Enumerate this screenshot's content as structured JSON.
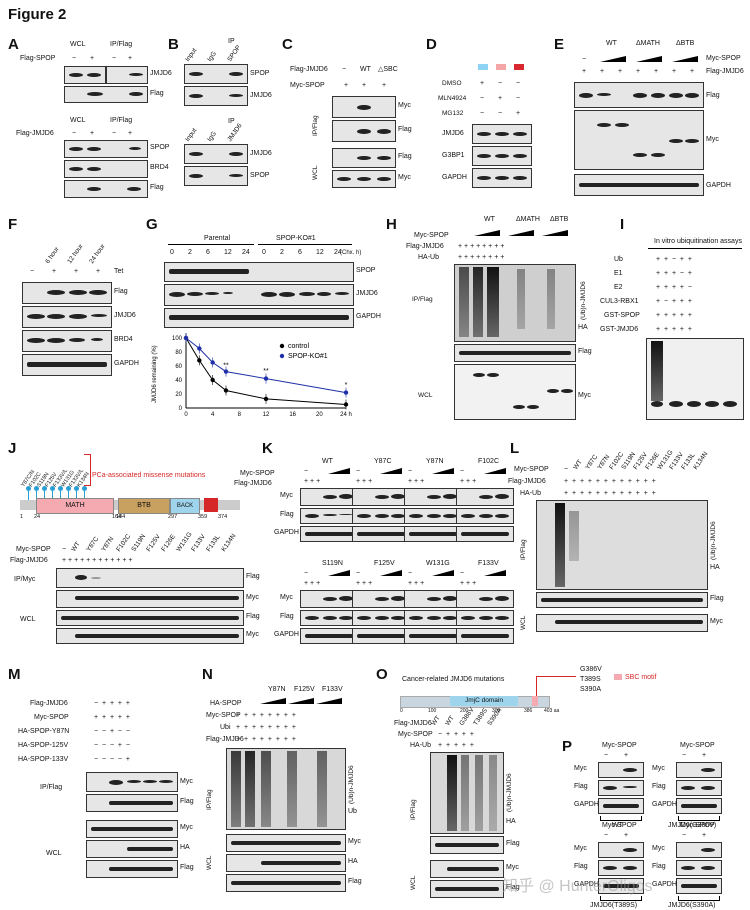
{
  "figure_title": "Figure 2",
  "panels": {
    "A": {
      "letter": "A",
      "col_wcl": "WCL",
      "col_ip": "IP/Flag",
      "row1": "Flag-SPOP",
      "labels1": [
        "JMJD6",
        "Flag"
      ],
      "row2": "Flag-JMJD6",
      "labels2": [
        "SPOP",
        "BRD4",
        "Flag"
      ],
      "minus": "−",
      "plus": "+"
    },
    "B": {
      "letter": "B",
      "ip": "IP",
      "cols1": [
        "Input",
        "IgG",
        "SPOP"
      ],
      "labels1": [
        "SPOP",
        "JMJD6"
      ],
      "cols2": [
        "Input",
        "IgG",
        "JMJD6"
      ],
      "labels2": [
        "JMJD6",
        "SPOP"
      ]
    },
    "C": {
      "letter": "C",
      "row1": "Flag-JMJD6",
      "row2": "Myc-SPOP",
      "cols": [
        "−",
        "WT",
        "△SBC"
      ],
      "group1": "IP/Flag",
      "group2": "WCL",
      "labels": [
        "Myc",
        "Flag",
        "Flag",
        "Myc"
      ]
    },
    "D": {
      "letter": "D",
      "rows": [
        "DMSO",
        "MLN4924",
        "MG132"
      ],
      "labels": [
        "JMJD6",
        "G3BP1",
        "GAPDH"
      ],
      "colors": [
        "#8fd3f4",
        "#f4a6a6",
        "#d9272e"
      ]
    },
    "E": {
      "letter": "E",
      "cols": [
        "WT",
        "ΔMATH",
        "ΔBTB"
      ],
      "row1": "Myc-SPOP",
      "row2": "Flag-JMJD6",
      "labels": [
        "Flag",
        "Myc",
        "GAPDH"
      ]
    },
    "F": {
      "letter": "F",
      "cols": [
        "6 hour",
        "12 hour",
        "24 hour"
      ],
      "row": "Tet",
      "labels": [
        "Flag",
        "JMJD6",
        "BRD4",
        "GAPDH"
      ]
    },
    "G": {
      "letter": "G",
      "groups": [
        "Parental",
        "SPOP-KO#1"
      ],
      "times": [
        "0",
        "2",
        "6",
        "12",
        "24"
      ],
      "unit": "(Chx. h)",
      "labels": [
        "SPOP",
        "JMJD6",
        "GAPDH"
      ]
    },
    "H": {
      "letter": "H",
      "cols": [
        "WT",
        "ΔMATH",
        "ΔBTB"
      ],
      "rows": [
        "Myc-SPOP",
        "Flag-JMJD6",
        "HA-Ub"
      ],
      "group1": "IP/Flag",
      "group2": "WCL",
      "ub": "(Ub)n-JMJD6",
      "labels": [
        "HA",
        "Flag",
        "Myc"
      ]
    },
    "I": {
      "letter": "I",
      "title": "In vitro ubiquitination assays",
      "rows": [
        "Ub",
        "E1",
        "E2",
        "CUL3-RBX1",
        "GST-SPOP",
        "GST-JMJD6"
      ]
    },
    "J": {
      "letter": "J",
      "mutations": [
        "Y87C/N",
        "F102C",
        "S119N",
        "F125V",
        "F133V/L",
        "W131G",
        "F133V/L",
        "K134N"
      ],
      "note": "PCa-associated missense mutations",
      "domains": [
        "MATH",
        "BTB",
        "BACK"
      ],
      "domain_nums": [
        "1",
        "24",
        "164",
        "184",
        "297",
        "359",
        "374"
      ],
      "rows": [
        "Myc-SPOP",
        "Flag-JMJD6"
      ],
      "cols": [
        "WT",
        "Y87C",
        "Y87N",
        "F102C",
        "S119N",
        "F125V",
        "F126E",
        "W131G",
        "F133V",
        "F133L",
        "K134N"
      ],
      "group1": "IP/Myc",
      "group2": "WCL",
      "labels": [
        "Flag",
        "Myc",
        "Flag",
        "Myc"
      ]
    },
    "K": {
      "letter": "K",
      "rows": [
        "Myc-SPOP",
        "Flag-JMJD6"
      ],
      "cols_top": [
        "WT",
        "Y87C",
        "Y87N",
        "F102C"
      ],
      "cols_bot": [
        "S119N",
        "F125V",
        "W131G",
        "F133V"
      ],
      "labels": [
        "Myc",
        "Flag",
        "GAPDH"
      ]
    },
    "L": {
      "letter": "L",
      "rows": [
        "Myc-SPOP",
        "Flag-JMJD6",
        "HA-Ub"
      ],
      "cols": [
        "WT",
        "Y87C",
        "Y87N",
        "F102C",
        "S119N",
        "F125V",
        "F126E",
        "W131G",
        "F133V",
        "F133L",
        "K134N"
      ],
      "group1": "IP/Flag",
      "group2": "WCL",
      "ub": "(Ub)n-JMJD6",
      "labels": [
        "HA",
        "Flag",
        "Myc"
      ]
    },
    "M": {
      "letter": "M",
      "rows": [
        "Flag-JMJD6",
        "Myc-SPOP",
        "HA-SPOP-Y87N",
        "HA-SPOP-125V",
        "HA-SPOP-133V"
      ],
      "group1": "IP/Flag",
      "group2": "WCL",
      "labels": [
        "Myc",
        "Flag",
        "Myc",
        "HA",
        "Flag"
      ]
    },
    "N": {
      "letter": "N",
      "cols": [
        "Y87N",
        "F125V",
        "F133V"
      ],
      "rows": [
        "HA-SPOP",
        "Myc-SPOP",
        "Ubi",
        "Flag-JMJD6"
      ],
      "group1": "IP/Flag",
      "group2": "WCL",
      "ub": "(Ub)n-JMJD6",
      "labels": [
        "Ub",
        "Myc",
        "HA",
        "Flag"
      ]
    },
    "O": {
      "letter": "O",
      "title": "Cancer-related JMJD6 mutations",
      "muts": [
        "G386V",
        "T389S",
        "S390A"
      ],
      "sbc": "SBC motif",
      "domain": "JmjC domain",
      "ticks": [
        "0",
        "100",
        "200",
        "300",
        "386",
        "403 aa"
      ],
      "rows": [
        "Flag-JMJD6",
        "Myc-SPOP",
        "HA-Ub"
      ],
      "cols": [
        "WT",
        "WT",
        "G386V",
        "T389S",
        "S390A"
      ],
      "group1": "IP/Flag",
      "group2": "WCL",
      "ub": "(Ub)n-JMJD6",
      "labels": [
        "HA",
        "Flag",
        "Myc",
        "Flag"
      ]
    },
    "P": {
      "letter": "P",
      "head": "Myc-SPOP",
      "labels": [
        "Myc",
        "Flag",
        "GAPDH"
      ],
      "groups": [
        "WT",
        "JMJD6(G386V)",
        "JMJD6(T389S)",
        "JMJD6(S390A)"
      ]
    }
  },
  "chart_data": {
    "type": "line",
    "title": "",
    "xlabel": "(h)",
    "ylabel": "JMJD6 remaining (%)",
    "x": [
      0,
      2,
      4,
      6,
      12,
      24
    ],
    "xticks": [
      "0",
      "4",
      "8",
      "12",
      "16",
      "20",
      "24 h"
    ],
    "yticks": [
      "0",
      "20",
      "40",
      "60",
      "80",
      "100"
    ],
    "xlim": [
      0,
      24
    ],
    "ylim": [
      0,
      100
    ],
    "series": [
      {
        "name": "control",
        "color": "#000000",
        "values": [
          100,
          68,
          40,
          25,
          13,
          5
        ]
      },
      {
        "name": "SPOP-KO#1",
        "color": "#1f2fa8",
        "values": [
          100,
          85,
          65,
          52,
          42,
          22
        ]
      }
    ],
    "annotations": [
      "**",
      "**",
      "*"
    ]
  },
  "watermark": "知乎 @ HunterOligos"
}
